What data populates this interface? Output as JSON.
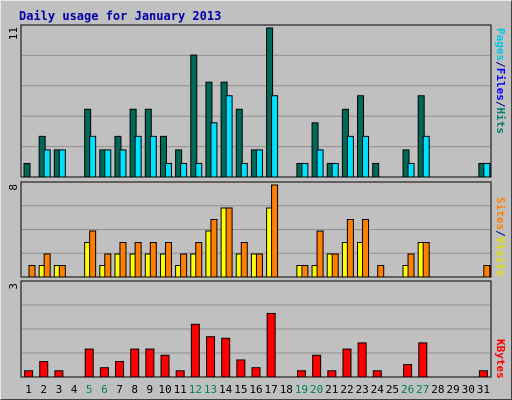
{
  "title": "Daily usage for January 2013",
  "colors": {
    "title": "#0000aa",
    "background": "#c0c0c0",
    "axis_text": "#000000",
    "hits": "#006a5a",
    "files": "#00e0ff",
    "pages": "#00c8e0",
    "sites": "#ff8000",
    "visits": "#ffff00",
    "kbytes": "#ff0000",
    "weekend_label": "#008060",
    "gridline": "#909090"
  },
  "right_labels": {
    "top": [
      {
        "text": "Pages",
        "color": "#00c8e0"
      },
      {
        "text": "/",
        "color": "#000080"
      },
      {
        "text": "Files",
        "color": "#0000ff"
      },
      {
        "text": "/",
        "color": "#000080"
      },
      {
        "text": "Hits",
        "color": "#00806a"
      }
    ],
    "middle": [
      {
        "text": "Sites",
        "color": "#ff8000"
      },
      {
        "text": "/",
        "color": "#000080"
      },
      {
        "text": "Visits",
        "color": "#e0e000"
      }
    ],
    "bottom": [
      {
        "text": "KBytes",
        "color": "#ff0000"
      }
    ]
  },
  "chart_data": {
    "type": "bar",
    "title": "Daily usage for January 2013",
    "categories": [
      "1",
      "2",
      "3",
      "4",
      "5",
      "6",
      "7",
      "8",
      "9",
      "10",
      "11",
      "12",
      "13",
      "14",
      "15",
      "16",
      "17",
      "18",
      "19",
      "20",
      "21",
      "22",
      "23",
      "24",
      "25",
      "26",
      "27",
      "28",
      "29",
      "30",
      "31"
    ],
    "weekend_days": [
      "5",
      "6",
      "12",
      "13",
      "19",
      "20",
      "26",
      "27"
    ],
    "panels": [
      {
        "name": "hits-files",
        "ymax_label": "11",
        "ylim": [
          0,
          11
        ],
        "series": [
          {
            "name": "Hits",
            "values": [
              1,
              3,
              2,
              0,
              5,
              2,
              3,
              5,
              5,
              3,
              2,
              9,
              7,
              7,
              5,
              2,
              11,
              0,
              1,
              4,
              1,
              5,
              6,
              1,
              0,
              2,
              6,
              0,
              0,
              0,
              1
            ]
          },
          {
            "name": "Files",
            "values": [
              0,
              2,
              2,
              0,
              3,
              2,
              2,
              3,
              3,
              1,
              1,
              1,
              4,
              6,
              1,
              2,
              6,
              0,
              1,
              2,
              1,
              3,
              3,
              0,
              0,
              1,
              3,
              0,
              0,
              0,
              1
            ]
          }
        ]
      },
      {
        "name": "visits-sites",
        "ymax_label": "8",
        "ylim": [
          0,
          8
        ],
        "series": [
          {
            "name": "Visits",
            "values": [
              0,
              1,
              1,
              0,
              3,
              1,
              2,
              2,
              2,
              2,
              1,
              2,
              4,
              6,
              2,
              2,
              6,
              0,
              1,
              1,
              2,
              3,
              3,
              0,
              0,
              1,
              3,
              0,
              0,
              0,
              0
            ]
          },
          {
            "name": "Sites",
            "values": [
              1,
              2,
              1,
              0,
              4,
              2,
              3,
              3,
              3,
              3,
              2,
              3,
              5,
              6,
              3,
              2,
              8,
              0,
              1,
              4,
              2,
              5,
              5,
              1,
              0,
              2,
              3,
              0,
              0,
              0,
              1
            ]
          }
        ]
      },
      {
        "name": "kbytes",
        "ymax_label": "3",
        "ylim": [
          0,
          3
        ],
        "series": [
          {
            "name": "KBytes",
            "values": [
              0.2,
              0.5,
              0.2,
              0,
              0.9,
              0.3,
              0.5,
              0.9,
              0.9,
              0.7,
              0.2,
              1.7,
              1.3,
              1.25,
              0.55,
              0.3,
              2.05,
              0,
              0.2,
              0.7,
              0.2,
              0.9,
              1.1,
              0.2,
              0,
              0.4,
              1.1,
              0,
              0,
              0,
              0.2
            ]
          }
        ]
      }
    ],
    "grid": true
  }
}
